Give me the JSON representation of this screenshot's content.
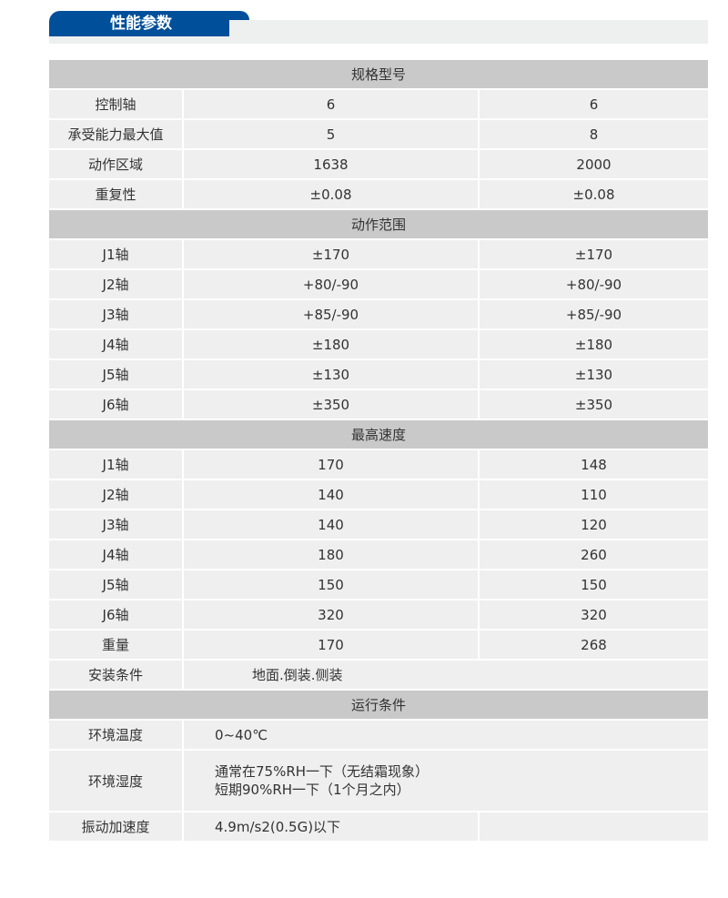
{
  "title": "性能参数",
  "sections": {
    "spec": {
      "header": "规格型号",
      "rows": [
        [
          "控制轴",
          "6",
          "6"
        ],
        [
          "承受能力最大值",
          "5",
          "8"
        ],
        [
          "动作区域",
          "1638",
          "2000"
        ],
        [
          "重复性",
          "±0.08",
          "±0.08"
        ]
      ]
    },
    "range": {
      "header": "动作范围",
      "rows": [
        [
          "J1轴",
          "±170",
          "±170"
        ],
        [
          "J2轴",
          "+80/-90",
          "+80/-90"
        ],
        [
          "J3轴",
          "+85/-90",
          "+85/-90"
        ],
        [
          "J4轴",
          "±180",
          "±180"
        ],
        [
          "J5轴",
          "±130",
          "±130"
        ],
        [
          "J6轴",
          "±350",
          "±350"
        ]
      ]
    },
    "speed": {
      "header": "最高速度",
      "rows": [
        [
          "J1轴",
          "170",
          "148"
        ],
        [
          "J2轴",
          "140",
          "110"
        ],
        [
          "J3轴",
          "140",
          "120"
        ],
        [
          "J4轴",
          "180",
          "260"
        ],
        [
          "J5轴",
          "150",
          "150"
        ],
        [
          "J6轴",
          "320",
          "320"
        ],
        [
          "重量",
          "170",
          "268"
        ]
      ]
    },
    "install": {
      "label": "安装条件",
      "value": "地面.倒装.侧装"
    },
    "operation": {
      "header": "运行条件",
      "temp_label": "环境温度",
      "temp": "0~40℃",
      "humidity_label": "环境湿度",
      "humidity1": "通常在75%RH一下（无结霜现象）",
      "humidity2": "短期90%RH一下（1个月之内）",
      "vib_label": "振动加速度",
      "vib": "4.9m/s2(0.5G)以下"
    }
  }
}
